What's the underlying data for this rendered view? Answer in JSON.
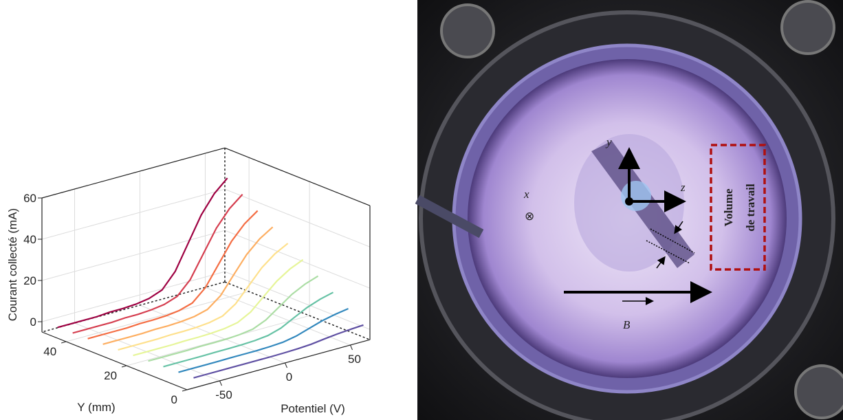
{
  "chart_data": {
    "type": "waterfall3d",
    "xlabel": "Potentiel (V)",
    "ylabel": "Y (mm)",
    "zlabel": "Courant collecté (mA)",
    "xlim": [
      -75,
      65
    ],
    "ylim": [
      0,
      48
    ],
    "zlim": [
      -5,
      60
    ],
    "xticks": [
      -50,
      0,
      50
    ],
    "yticks": [
      0,
      20,
      40
    ],
    "zticks": [
      0,
      20,
      40,
      60
    ],
    "grid": true,
    "x": [
      -70,
      -60,
      -50,
      -40,
      -30,
      -20,
      -10,
      0,
      10,
      20,
      30,
      40,
      50,
      60
    ],
    "series": [
      {
        "y": 0,
        "color": "#5e4fa2",
        "values": [
          -0.1,
          -0.1,
          -0.1,
          -0.1,
          -0.1,
          -0.1,
          -0.1,
          0,
          0.2,
          0.6,
          1.4,
          2.1,
          2.6,
          3
        ]
      },
      {
        "y": 5,
        "color": "#3288bd",
        "values": [
          -0.3,
          -0.3,
          -0.3,
          -0.3,
          -0.2,
          -0.2,
          -0.2,
          0,
          0.4,
          1.6,
          3.6,
          5.6,
          7,
          8
        ]
      },
      {
        "y": 10,
        "color": "#66c2a5",
        "values": [
          -0.5,
          -0.5,
          -0.5,
          -0.5,
          -0.4,
          -0.4,
          -0.3,
          0,
          0.7,
          2.6,
          5.9,
          9.1,
          11.4,
          13
        ]
      },
      {
        "y": 15,
        "color": "#abdda4",
        "values": [
          -0.7,
          -0.7,
          -0.7,
          -0.7,
          -0.5,
          -0.5,
          -0.4,
          0,
          0.9,
          3.6,
          8.1,
          12.6,
          15.8,
          18
        ]
      },
      {
        "y": 20,
        "color": "#e6f598",
        "values": [
          -0.9,
          -0.9,
          -0.9,
          -0.9,
          -0.7,
          -0.7,
          -0.5,
          0,
          1.2,
          4.6,
          10.4,
          16.1,
          20.2,
          23
        ]
      },
      {
        "y": 25,
        "color": "#fee08b",
        "values": [
          -1.1,
          -1.1,
          -1.1,
          -1.1,
          -0.8,
          -0.8,
          -0.6,
          0,
          1.4,
          5.6,
          12.6,
          19.6,
          24.6,
          28
        ]
      },
      {
        "y": 30,
        "color": "#fdae61",
        "values": [
          -1.3,
          -1.3,
          -1.3,
          -1.3,
          -1,
          -1,
          -0.7,
          0,
          1.7,
          6.6,
          14.9,
          23.1,
          29,
          33
        ]
      },
      {
        "y": 35,
        "color": "#f46d43",
        "values": [
          -1.5,
          -1.5,
          -1.5,
          -1.5,
          -1.1,
          -1.1,
          -0.8,
          0,
          1.9,
          7.6,
          17.1,
          26.6,
          33.4,
          38
        ]
      },
      {
        "y": 40,
        "color": "#d53e4f",
        "values": [
          -1.7,
          -1.7,
          -1.7,
          -1.7,
          -1.3,
          -1.3,
          -0.9,
          0,
          2.2,
          8.6,
          19.4,
          30.1,
          37.8,
          43
        ]
      },
      {
        "y": 45,
        "color": "#9e0142",
        "values": [
          -1.9,
          -1.9,
          -1.9,
          -1.9,
          -1.4,
          -1.4,
          -1,
          0,
          2.4,
          9.6,
          21.6,
          33.6,
          42.2,
          48
        ]
      }
    ]
  },
  "photo": {
    "x": "x",
    "cross": "⊗",
    "y": "y",
    "z": "z",
    "b": "B",
    "volume_1": "Volume",
    "volume_2": "de travail"
  }
}
